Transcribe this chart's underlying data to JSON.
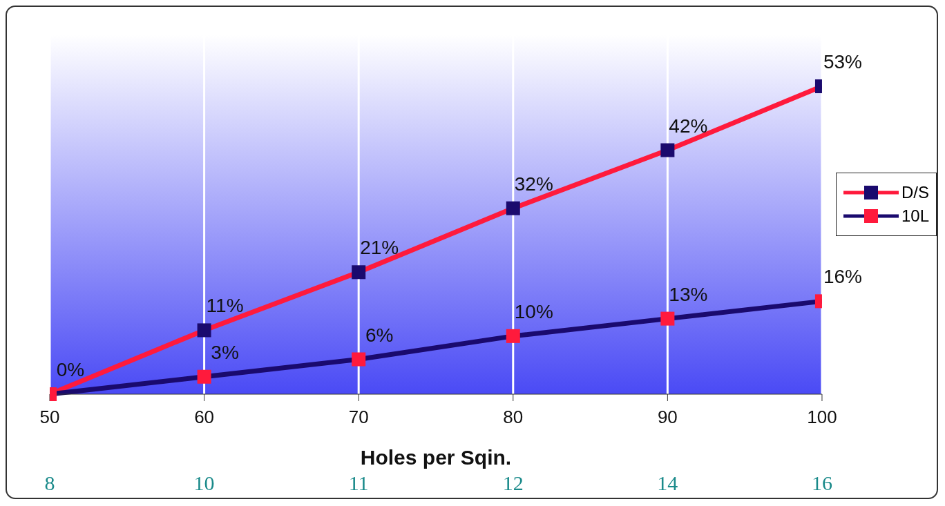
{
  "chart_data": {
    "type": "line",
    "xlabel": "Holes per Sqin.",
    "x": [
      50,
      60,
      70,
      80,
      90,
      100
    ],
    "xlim": [
      50,
      100
    ],
    "xticks": [
      50,
      60,
      70,
      80,
      90,
      100
    ],
    "annotations": [
      "8",
      "10",
      "11",
      "12",
      "14",
      "16"
    ],
    "series": [
      {
        "name": "D/S",
        "color": "#ff1a3c",
        "colors": [
          "#1a0a6e",
          "#1a0a6e",
          "#1a0a6e",
          "#1a0a6e",
          "#1a0a6e",
          "#1a0a6e"
        ],
        "values": [
          0,
          11,
          21,
          32,
          42,
          53
        ],
        "value_labels": [
          "0%",
          "11%",
          "21%",
          "32%",
          "42%",
          "53%"
        ]
      },
      {
        "name": "10L",
        "color": "#1a0a6e",
        "colors": [
          "#ff1a3c",
          "#ff1a3c",
          "#ff1a3c",
          "#ff1a3c",
          "#ff1a3c",
          "#ff1a3c"
        ],
        "values": [
          0,
          3,
          6,
          10,
          13,
          16
        ],
        "value_labels": [
          null,
          "3%",
          "6%",
          "10%",
          "13%",
          "16%"
        ]
      }
    ],
    "marker": "square",
    "grid": "x",
    "legend": "right",
    "tick_labels": "x"
  }
}
